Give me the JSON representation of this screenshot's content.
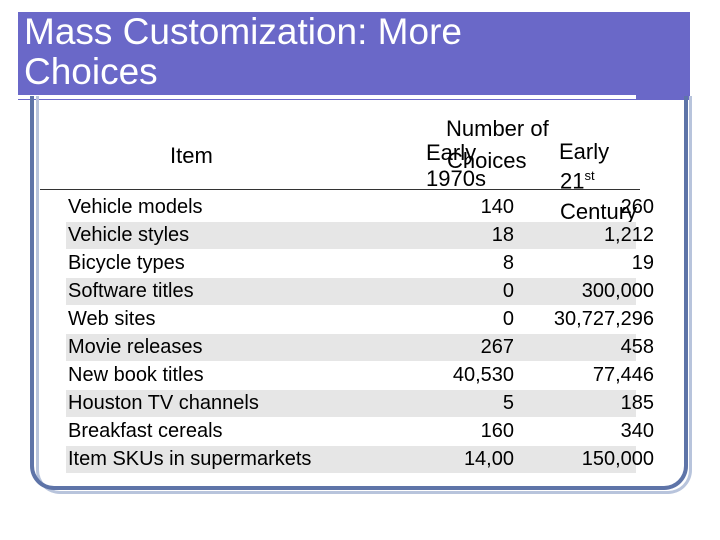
{
  "slide": {
    "title_line1": "Mass Customization:  More",
    "title_line2": "Choices"
  },
  "table": {
    "headers": {
      "item": "Item",
      "number_of": "Number of",
      "choices": "Choices",
      "early_1970s_a": "Early",
      "early_1970s_b": "1970s",
      "early_21st_a": "Early",
      "early_21st_b": "21",
      "early_21st_sup": "st",
      "early_21st_c": "Century"
    },
    "rows": [
      {
        "item": "Vehicle models",
        "early_1970s": "140",
        "early_21st": "260"
      },
      {
        "item": "Vehicle styles",
        "early_1970s": "18",
        "early_21st": "1,212"
      },
      {
        "item": "Bicycle types",
        "early_1970s": "8",
        "early_21st": "19"
      },
      {
        "item": "Software titles",
        "early_1970s": "0",
        "early_21st": "300,000"
      },
      {
        "item": "Web sites",
        "early_1970s": "0",
        "early_21st": "30,727,296"
      },
      {
        "item": "Movie releases",
        "early_1970s": "267",
        "early_21st": "458"
      },
      {
        "item": "New book titles",
        "early_1970s": "40,530",
        "early_21st": "77,446"
      },
      {
        "item": "Houston TV channels",
        "early_1970s": "5",
        "early_21st": "185"
      },
      {
        "item": "Breakfast cereals",
        "early_1970s": "160",
        "early_21st": "340"
      },
      {
        "item": "Item SKUs in supermarkets",
        "early_1970s": "14,00",
        "early_21st": "150,000"
      }
    ]
  }
}
